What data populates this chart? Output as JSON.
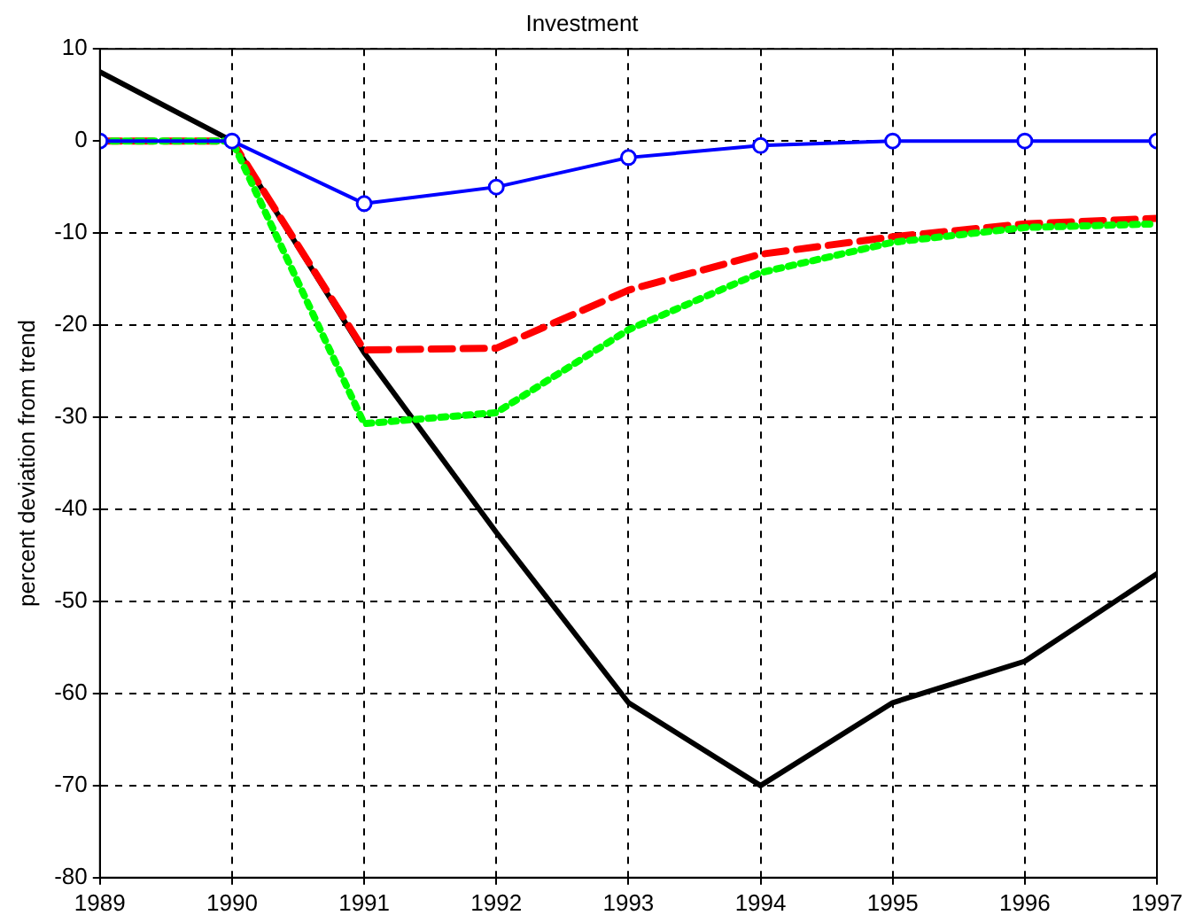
{
  "chart_data": {
    "type": "line",
    "title": "Investment",
    "ylabel": "percent deviation from trend",
    "x": [
      1989,
      1990,
      1991,
      1992,
      1993,
      1994,
      1995,
      1996,
      1997
    ],
    "xlim": [
      1989,
      1997
    ],
    "xticks": [
      1989,
      1990,
      1991,
      1992,
      1993,
      1994,
      1995,
      1996,
      1997
    ],
    "ylim": [
      -80,
      10
    ],
    "yticks": [
      -80,
      -70,
      -60,
      -50,
      -40,
      -30,
      -20,
      -10,
      0,
      10
    ],
    "grid": true,
    "legend": false,
    "series": [
      {
        "color": "#000000",
        "line_style": "solid",
        "marker": "none",
        "values": [
          7.5,
          0,
          -23,
          -42.5,
          -61,
          -70,
          -61,
          -56.5,
          -47
        ]
      },
      {
        "color": "#ff0000",
        "line_style": "dashed",
        "marker": "none",
        "values": [
          0,
          0,
          -22.7,
          -22.5,
          -16.2,
          -12.3,
          -10.4,
          -9,
          -8.4
        ]
      },
      {
        "color": "#00ff00",
        "line_style": "dotted",
        "marker": "none",
        "values": [
          0,
          0,
          -30.7,
          -29.5,
          -20.5,
          -14.3,
          -11,
          -9.4,
          -9
        ]
      },
      {
        "color": "#0000ff",
        "line_style": "solid",
        "marker": "circle",
        "values": [
          0,
          0,
          -6.8,
          -5,
          -1.8,
          -0.5,
          0,
          0,
          0
        ]
      }
    ]
  }
}
